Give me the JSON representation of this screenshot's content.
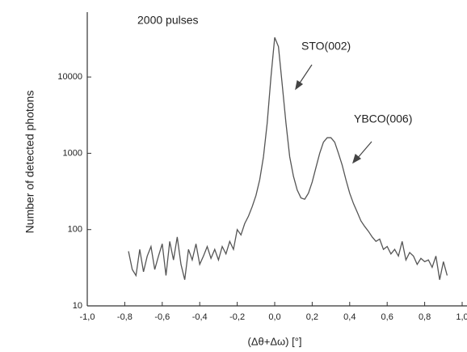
{
  "chart_data": {
    "type": "line",
    "xlabel": "(Δθ+Δω) [°]",
    "ylabel": "Number of detected photons",
    "annotations": [
      "2000 pulses",
      "STO(002)",
      "YBCO(006)"
    ],
    "x": [
      -0.78,
      -0.76,
      -0.74,
      -0.72,
      -0.7,
      -0.68,
      -0.66,
      -0.64,
      -0.62,
      -0.6,
      -0.58,
      -0.56,
      -0.54,
      -0.52,
      -0.5,
      -0.48,
      -0.46,
      -0.44,
      -0.42,
      -0.4,
      -0.38,
      -0.36,
      -0.34,
      -0.32,
      -0.3,
      -0.28,
      -0.26,
      -0.24,
      -0.22,
      -0.2,
      -0.18,
      -0.16,
      -0.14,
      -0.12,
      -0.1,
      -0.08,
      -0.06,
      -0.04,
      -0.02,
      0,
      0.02,
      0.04,
      0.06,
      0.08,
      0.1,
      0.12,
      0.14,
      0.16,
      0.18,
      0.2,
      0.22,
      0.24,
      0.26,
      0.28,
      0.3,
      0.32,
      0.34,
      0.36,
      0.38,
      0.4,
      0.42,
      0.44,
      0.46,
      0.48,
      0.5,
      0.52,
      0.54,
      0.56,
      0.58,
      0.6,
      0.62,
      0.64,
      0.66,
      0.68,
      0.7,
      0.72,
      0.74,
      0.76,
      0.78,
      0.8,
      0.82,
      0.84,
      0.86,
      0.88,
      0.9,
      0.92
    ],
    "series": [
      {
        "color": "#555555",
        "values": [
          52,
          30,
          25,
          55,
          28,
          45,
          60,
          30,
          45,
          65,
          25,
          70,
          40,
          80,
          35,
          22,
          55,
          40,
          65,
          35,
          45,
          60,
          42,
          55,
          40,
          60,
          48,
          70,
          55,
          100,
          85,
          120,
          150,
          200,
          280,
          450,
          900,
          2500,
          10000,
          33000,
          25000,
          8000,
          2500,
          900,
          500,
          330,
          260,
          250,
          300,
          420,
          650,
          1000,
          1400,
          1600,
          1600,
          1400,
          1000,
          700,
          450,
          300,
          220,
          170,
          130,
          110,
          95,
          80,
          70,
          75,
          55,
          60,
          48,
          55,
          45,
          70,
          40,
          50,
          45,
          35,
          42,
          38,
          40,
          32,
          45,
          22,
          38,
          25
        ]
      }
    ],
    "log_y": true,
    "xlim": [
      -1.0,
      1.0
    ],
    "ylim": [
      10,
      80000
    ],
    "xticks": [
      {
        "value": -1.0,
        "label": "-1,0"
      },
      {
        "value": -0.8,
        "label": "-0,8"
      },
      {
        "value": -0.6,
        "label": "-0,6"
      },
      {
        "value": -0.4,
        "label": "-0,4"
      },
      {
        "value": -0.2,
        "label": "-0,2"
      },
      {
        "value": 0.0,
        "label": "0,0"
      },
      {
        "value": 0.2,
        "label": "0,2"
      },
      {
        "value": 0.4,
        "label": "0,4"
      },
      {
        "value": 0.6,
        "label": "0,6"
      },
      {
        "value": 0.8,
        "label": "0,8"
      },
      {
        "value": 1.0,
        "label": "1,0"
      }
    ],
    "yticks": [
      10,
      100,
      1000,
      10000
    ]
  }
}
